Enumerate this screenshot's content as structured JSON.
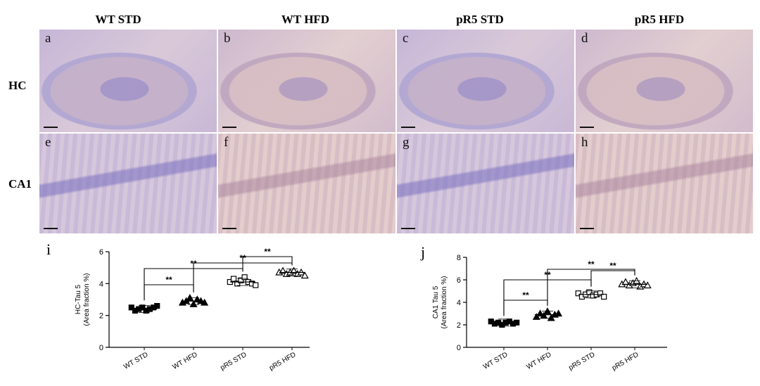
{
  "column_headers": [
    "WT STD",
    "WT HFD",
    "pR5 STD",
    "pR5 HFD"
  ],
  "row_headers": [
    "HC",
    "CA1"
  ],
  "micro_letters": [
    "a",
    "b",
    "c",
    "d",
    "e",
    "f",
    "g",
    "h"
  ],
  "colors": {
    "marker": "#000000",
    "axis": "#000000",
    "bracket": "#000000"
  },
  "chart_data": [
    {
      "panel": "i",
      "type": "scatter",
      "ylabel": "HC-Tau 5\n(Area fraction %)",
      "ylim": [
        0,
        6
      ],
      "yticks": [
        0,
        2,
        4,
        6
      ],
      "categories": [
        "WT STD",
        "WT HFD",
        "pR5 STD",
        "pR5 HFD"
      ],
      "markers": [
        "square-filled",
        "triangle-filled",
        "square-open",
        "triangle-open"
      ],
      "means": [
        2.4,
        2.9,
        4.1,
        4.7
      ],
      "points": [
        [
          2.5,
          2.3,
          2.4,
          2.5,
          2.3,
          2.4,
          2.5,
          2.6
        ],
        [
          2.8,
          2.9,
          3.1,
          2.7,
          3.0,
          2.9,
          2.8
        ],
        [
          4.1,
          4.3,
          4.0,
          4.2,
          4.4,
          4.1,
          4.0,
          3.9
        ],
        [
          4.7,
          4.8,
          4.6,
          4.7,
          4.8,
          4.6,
          4.7,
          4.5
        ]
      ],
      "comparisons": [
        {
          "from": 0,
          "to": 1,
          "label": "**"
        },
        {
          "from": 0,
          "to": 2,
          "label": "**"
        },
        {
          "from": 1,
          "to": 3,
          "label": "**"
        },
        {
          "from": 2,
          "to": 3,
          "label": "**"
        }
      ]
    },
    {
      "panel": "j",
      "type": "scatter",
      "ylabel": "CA1 Tau 5\n(Area fraction %)",
      "ylim": [
        0,
        8
      ],
      "yticks": [
        0,
        2,
        4,
        6,
        8
      ],
      "categories": [
        "WT STD",
        "WT HFD",
        "pR5 STD",
        "pR5 HFD"
      ],
      "markers": [
        "square-filled",
        "triangle-filled",
        "square-open",
        "triangle-open"
      ],
      "means": [
        2.2,
        2.9,
        4.7,
        5.6
      ],
      "points": [
        [
          2.3,
          2.1,
          2.2,
          2.0,
          2.2,
          2.3,
          2.1,
          2.2
        ],
        [
          2.7,
          3.0,
          2.8,
          3.2,
          2.6,
          2.9,
          3.0
        ],
        [
          4.8,
          4.5,
          4.7,
          4.9,
          4.6,
          4.7,
          4.8,
          4.5
        ],
        [
          5.6,
          5.8,
          5.5,
          5.7,
          5.9,
          5.4,
          5.6,
          5.5
        ]
      ],
      "comparisons": [
        {
          "from": 0,
          "to": 1,
          "label": "**"
        },
        {
          "from": 0,
          "to": 2,
          "label": "**"
        },
        {
          "from": 1,
          "to": 3,
          "label": "**"
        },
        {
          "from": 2,
          "to": 3,
          "label": "**"
        }
      ]
    }
  ],
  "chart_letters": [
    "i",
    "j"
  ]
}
